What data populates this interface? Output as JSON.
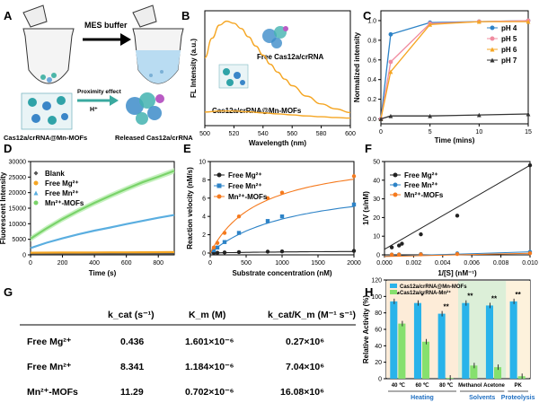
{
  "panels": {
    "A": {
      "label": "A",
      "buffer_label": "MES buffer",
      "proximity_label": "Proximity effect",
      "proton_label": "H⁺",
      "left_caption": "Cas12a/crRNA@Mn-MOFs",
      "right_caption": "Released Cas12a/crRNA"
    },
    "B": {
      "label": "B",
      "annotation_top": "Free Cas12a/crRNA",
      "annotation_bottom": "Cas12a/crRNA@Mn-MOFs"
    },
    "C": {
      "label": "C"
    },
    "D": {
      "label": "D"
    },
    "E": {
      "label": "E"
    },
    "F": {
      "label": "F"
    },
    "G": {
      "label": "G",
      "headers": [
        "k_cat (s⁻¹)",
        "K_m (M)",
        "k_cat/K_m (M⁻¹ s⁻¹)"
      ],
      "rows": [
        {
          "name": "Free  Mg²⁺",
          "kcat": "0.436",
          "km": "1.601×10⁻⁶",
          "ratio": "0.27×10⁶"
        },
        {
          "name": "Free  Mn²⁺",
          "kcat": "8.341",
          "km": "1.184×10⁻⁶",
          "ratio": "7.04×10⁶"
        },
        {
          "name": "Mn²⁺-MOFs",
          "kcat": "11.29",
          "km": "0.702×10⁻⁶",
          "ratio": "16.08×10⁶"
        }
      ]
    },
    "H": {
      "label": "H"
    }
  },
  "chart_data": [
    {
      "panel": "B",
      "type": "line",
      "xlabel": "Wavelength (nm)",
      "ylabel": "FL Intensity (a.u.)",
      "xlim": [
        500,
        600
      ],
      "xticks": [
        500,
        520,
        540,
        560,
        580,
        600
      ],
      "series": [
        {
          "name": "Free Cas12a/crRNA",
          "color": "#f5a623",
          "x": [
            500,
            505,
            510,
            515,
            520,
            525,
            530,
            535,
            540,
            545,
            550,
            555,
            560,
            570,
            580,
            590,
            600
          ],
          "y": [
            2600,
            3350,
            3850,
            4000,
            3920,
            3720,
            3400,
            3050,
            2700,
            2350,
            2050,
            1780,
            1530,
            1130,
            830,
            640,
            500
          ]
        },
        {
          "name": "Cas12a/crRNA@Mn-MOFs",
          "color": "#f5a623",
          "x": [
            500,
            510,
            520,
            530,
            540,
            550,
            560,
            570,
            580,
            590,
            600
          ],
          "y": [
            520,
            560,
            560,
            530,
            490,
            450,
            410,
            370,
            340,
            310,
            290
          ]
        }
      ]
    },
    {
      "panel": "C",
      "type": "line",
      "xlabel": "Time (mins)",
      "ylabel": "Normalized intensity",
      "xlim": [
        0,
        15
      ],
      "ylim": [
        0,
        1.0
      ],
      "xticks": [
        0,
        5,
        10,
        15
      ],
      "yticks": [
        0.0,
        0.2,
        0.4,
        0.6,
        0.8,
        1.0
      ],
      "series": [
        {
          "name": "pH 4",
          "color": "#2d83c7",
          "marker": "circle",
          "x": [
            0,
            1,
            5,
            10,
            15
          ],
          "y": [
            0,
            0.86,
            0.98,
            0.99,
            1.0
          ]
        },
        {
          "name": "pH 5",
          "color": "#f08ca0",
          "marker": "circle",
          "x": [
            0,
            1,
            5,
            10,
            15
          ],
          "y": [
            0,
            0.58,
            0.97,
            0.99,
            1.0
          ]
        },
        {
          "name": "pH 6",
          "color": "#f5a623",
          "marker": "triangle",
          "x": [
            0,
            1,
            5,
            10,
            15
          ],
          "y": [
            0,
            0.48,
            0.96,
            0.99,
            0.99
          ]
        },
        {
          "name": "pH 7",
          "color": "#333333",
          "marker": "triangle",
          "x": [
            0,
            1,
            5,
            10,
            15
          ],
          "y": [
            0,
            0.03,
            0.03,
            0.04,
            0.05
          ]
        }
      ]
    },
    {
      "panel": "D",
      "type": "line",
      "xlabel": "Time (s)",
      "ylabel": "Fluorescent Intensity",
      "xlim": [
        0,
        900
      ],
      "ylim": [
        0,
        30000
      ],
      "xticks": [
        0,
        200,
        400,
        600,
        800
      ],
      "yticks": [
        0,
        5000,
        10000,
        15000,
        20000,
        25000,
        30000
      ],
      "series": [
        {
          "name": "Blank",
          "color": "#555555",
          "marker": "diamond",
          "x": [
            0,
            100,
            200,
            300,
            400,
            500,
            600,
            700,
            800,
            900
          ],
          "y": [
            500,
            500,
            500,
            500,
            500,
            500,
            500,
            500,
            500,
            500
          ]
        },
        {
          "name": "Free Mg²⁺",
          "color": "#f5a623",
          "marker": "circle",
          "x": [
            0,
            100,
            200,
            300,
            400,
            500,
            600,
            700,
            800,
            900
          ],
          "y": [
            700,
            720,
            740,
            760,
            780,
            800,
            820,
            840,
            860,
            880
          ]
        },
        {
          "name": "Free Mn²⁺",
          "color": "#5aaee0",
          "marker": "triangle",
          "x": [
            0,
            100,
            200,
            300,
            400,
            500,
            600,
            700,
            800,
            900
          ],
          "y": [
            2200,
            3900,
            5300,
            6600,
            7800,
            8800,
            9900,
            10900,
            11900,
            12800
          ]
        },
        {
          "name": "Mn²⁺-MOFs",
          "color": "#7ad36a",
          "marker": "circle",
          "x": [
            0,
            100,
            200,
            300,
            400,
            500,
            600,
            700,
            800,
            900
          ],
          "y": [
            5200,
            8500,
            11500,
            14200,
            16700,
            19000,
            21200,
            23300,
            25100,
            27000
          ]
        }
      ]
    },
    {
      "panel": "E",
      "type": "scatter",
      "xlabel": "Substrate concentration (nM)",
      "ylabel": "Reaction velocity (nM/s)",
      "xlim": [
        0,
        2000
      ],
      "ylim": [
        0,
        10
      ],
      "xticks": [
        0,
        500,
        1000,
        1500,
        2000
      ],
      "yticks": [
        0,
        2,
        4,
        6,
        8,
        10
      ],
      "series": [
        {
          "name": "Free Mg²⁺",
          "color": "#222222",
          "x": [
            50,
            100,
            200,
            400,
            800,
            1000,
            2000
          ],
          "y": [
            0.02,
            0.03,
            0.06,
            0.1,
            0.15,
            0.17,
            0.24
          ]
        },
        {
          "name": "Free Mn²⁺",
          "color": "#2d83c7",
          "x": [
            50,
            100,
            200,
            400,
            800,
            1000,
            2000
          ],
          "y": [
            0.3,
            0.6,
            1.2,
            2.2,
            3.5,
            4.0,
            5.3
          ]
        },
        {
          "name": "Mn²⁺-MOFs",
          "color": "#f57a1e",
          "x": [
            50,
            100,
            200,
            400,
            800,
            1000,
            2000
          ],
          "y": [
            0.6,
            1.1,
            2.2,
            4.0,
            6.0,
            6.6,
            8.4
          ]
        }
      ]
    },
    {
      "panel": "F",
      "type": "scatter",
      "xlabel": "1/[S] (nM⁻¹)",
      "ylabel": "1/V (s/nM)",
      "xlim": [
        0,
        0.01
      ],
      "ylim": [
        0,
        50
      ],
      "xticks": [
        "0.000",
        "0.002",
        "0.004",
        "0.006",
        "0.008",
        "0.010"
      ],
      "yticks": [
        0,
        10,
        20,
        30,
        40,
        50
      ],
      "series": [
        {
          "name": "Free Mg²⁺",
          "color": "#222222",
          "x": [
            0.0005,
            0.001,
            0.0012,
            0.0025,
            0.005,
            0.01
          ],
          "y": [
            4,
            5,
            6,
            11,
            21,
            48
          ]
        },
        {
          "name": "Free Mn²⁺",
          "color": "#2d83c7",
          "x": [
            0.0005,
            0.001,
            0.0025,
            0.005,
            0.01
          ],
          "y": [
            0.19,
            0.25,
            0.45,
            0.83,
            1.6
          ]
        },
        {
          "name": "Mn²⁺-MOFs",
          "color": "#f57a1e",
          "x": [
            0.0005,
            0.001,
            0.0025,
            0.005,
            0.01
          ],
          "y": [
            0.12,
            0.15,
            0.25,
            0.45,
            0.85
          ]
        }
      ]
    },
    {
      "panel": "H",
      "type": "bar",
      "ylabel": "Relative Activity (%)",
      "ylim": [
        0,
        120
      ],
      "yticks": [
        0,
        20,
        40,
        60,
        80,
        100,
        120
      ],
      "categories": [
        "40 ℃",
        "60 ℃",
        "80 ℃",
        "Methanol",
        "Acetone",
        "PK"
      ],
      "groups": [
        {
          "name": "Heating",
          "color": "#1f6fc2",
          "from": 0,
          "to": 2
        },
        {
          "name": "Solvents",
          "color": "#1f6fc2",
          "from": 3,
          "to": 4
        },
        {
          "name": "Proteolysis",
          "color": "#1f6fc2",
          "from": 5,
          "to": 5
        }
      ],
      "significance": [
        "*",
        "*",
        "**",
        "**",
        "**",
        "**"
      ],
      "series": [
        {
          "name": "Cas12a/crRNA@Mn-MOFs",
          "color": "#29b3ea",
          "values": [
            94,
            92,
            79,
            92,
            89,
            94
          ]
        },
        {
          "name": "Cas12a/crRNA-Mn²⁺",
          "color": "#86e06e",
          "values": [
            67,
            45,
            1,
            16,
            14,
            3
          ]
        }
      ]
    }
  ]
}
